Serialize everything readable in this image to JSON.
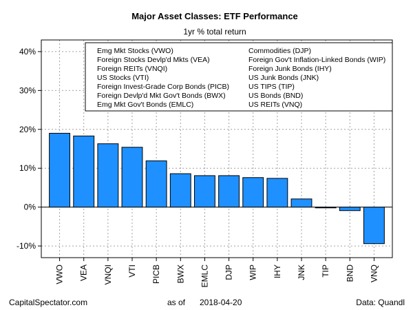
{
  "chart_data": {
    "type": "bar",
    "title": "Major Asset Classes: ETF Performance",
    "subtitle": "1yr % total return",
    "categories": [
      "VWO",
      "VEA",
      "VNQI",
      "VTI",
      "PICB",
      "BWX",
      "EMLC",
      "DJP",
      "WIP",
      "IHY",
      "JNK",
      "TIP",
      "BND",
      "VNQ"
    ],
    "values": [
      19.0,
      18.3,
      16.3,
      15.4,
      11.9,
      8.6,
      8.1,
      8.1,
      7.6,
      7.4,
      2.1,
      -0.2,
      -0.9,
      -9.4
    ],
    "ylim": [
      -13,
      43
    ],
    "yticks": [
      -10,
      0,
      10,
      20,
      30,
      40
    ],
    "ytick_labels": [
      "-10%",
      "0%",
      "10%",
      "20%",
      "30%",
      "40%"
    ],
    "grid": true,
    "bar_color": "#1e90ff",
    "legend": {
      "placement": "top",
      "col1": [
        "Emg Mkt Stocks (VWO)",
        "Foreign Stocks Devlp'd Mkts (VEA)",
        "Foreign REITs (VNQI)",
        "US Stocks (VTI)",
        "Foreign Invest-Grade Corp Bonds (PICB)",
        "Foreign Devlp'd Mkt Gov't Bonds (BWX)",
        "Emg Mkt Gov't Bonds (EMLC)"
      ],
      "col2": [
        "Commodities (DJP)",
        "Foreign Gov't Inflation-Linked Bonds (WIP)",
        "Foreign Junk Bonds (IHY)",
        "US Junk Bonds (JNK)",
        "US TIPS (TIP)",
        "US Bonds (BND)",
        "US REITs (VNQ)"
      ]
    }
  },
  "footer": {
    "source": "CapitalSpectator.com",
    "date_prefix": "as of",
    "date": "2018-04-20",
    "data_credit": "Data: Quandl"
  }
}
